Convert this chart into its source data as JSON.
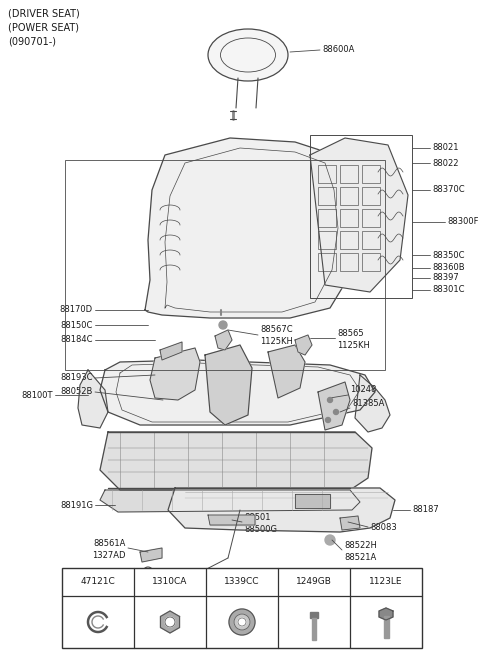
{
  "title_lines": [
    "(DRIVER SEAT)",
    "(POWER SEAT)",
    "(090701-)"
  ],
  "bg_color": "#ffffff",
  "line_color": "#4a4a4a",
  "text_color": "#1a1a1a",
  "table_labels": [
    "47121C",
    "1310CA",
    "1339CC",
    "1249GB",
    "1123LE"
  ],
  "figsize": [
    4.8,
    6.52
  ],
  "dpi": 100,
  "font_size": 6.0
}
